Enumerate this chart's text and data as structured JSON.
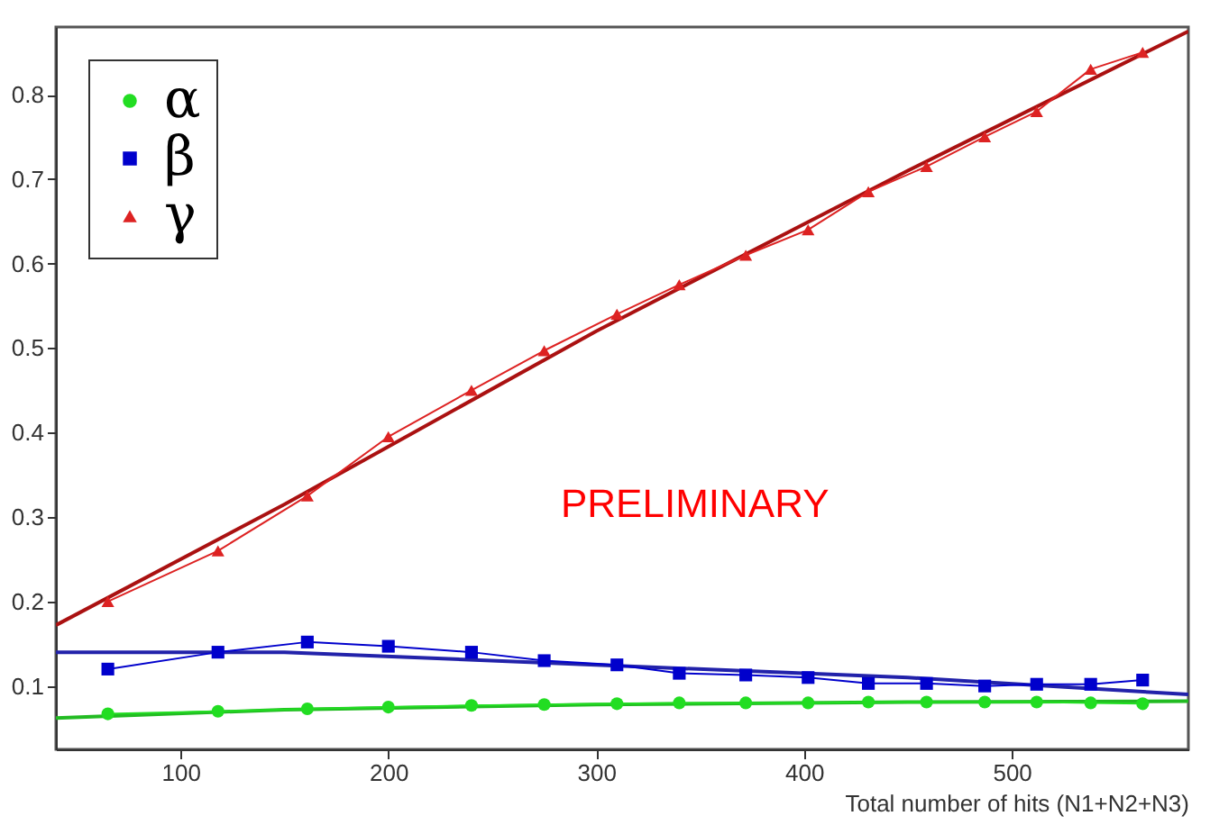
{
  "chart_data": {
    "type": "line",
    "xlabel": "Total number of hits (N1+N2+N3)",
    "annotations": [
      "PRELIMINARY"
    ],
    "xlim": [
      40,
      585
    ],
    "ylim": [
      0.025,
      0.88
    ],
    "xticks": [
      100,
      200,
      300,
      400,
      500
    ],
    "yticks": [
      0.1,
      0.2,
      0.3,
      0.4,
      0.5,
      0.6,
      0.7,
      0.8
    ],
    "grid": false,
    "legend": "top left",
    "x": [
      65,
      118,
      161,
      200,
      240,
      275,
      310,
      340,
      372,
      402,
      431,
      459,
      487,
      512,
      538,
      563
    ],
    "series": [
      {
        "name": "α",
        "color": "#22dd22",
        "marker": "circle",
        "values": [
          0.067,
          0.07,
          0.073,
          0.075,
          0.077,
          0.078,
          0.079,
          0.08,
          0.08,
          0.08,
          0.081,
          0.081,
          0.081,
          0.081,
          0.08,
          0.079
        ]
      },
      {
        "name": "β",
        "color": "#0000cc",
        "marker": "square",
        "values": [
          0.12,
          0.14,
          0.152,
          0.147,
          0.14,
          0.13,
          0.125,
          0.115,
          0.113,
          0.11,
          0.103,
          0.103,
          0.1,
          0.102,
          0.102,
          0.107
        ]
      },
      {
        "name": "γ",
        "color": "#dd2222",
        "marker": "triangle",
        "values": [
          0.2,
          0.26,
          0.325,
          0.395,
          0.45,
          0.497,
          0.54,
          0.575,
          0.61,
          0.64,
          0.685,
          0.715,
          0.75,
          0.78,
          0.83,
          0.85
        ]
      },
      {
        "type": "line",
        "color": "#22bb22",
        "marker": "none",
        "x": [
          40,
          150,
          300,
          450,
          585
        ],
        "values": [
          0.062,
          0.072,
          0.078,
          0.081,
          0.082
        ]
      },
      {
        "type": "line",
        "color": "#2222aa",
        "marker": "none",
        "x": [
          40,
          150,
          300,
          450,
          585
        ],
        "values": [
          0.14,
          0.14,
          0.125,
          0.11,
          0.09
        ]
      },
      {
        "type": "line",
        "color": "#aa1111",
        "marker": "none",
        "x": [
          40,
          150,
          300,
          450,
          585
        ],
        "values": [
          0.172,
          0.315,
          0.52,
          0.71,
          0.875
        ]
      }
    ]
  }
}
